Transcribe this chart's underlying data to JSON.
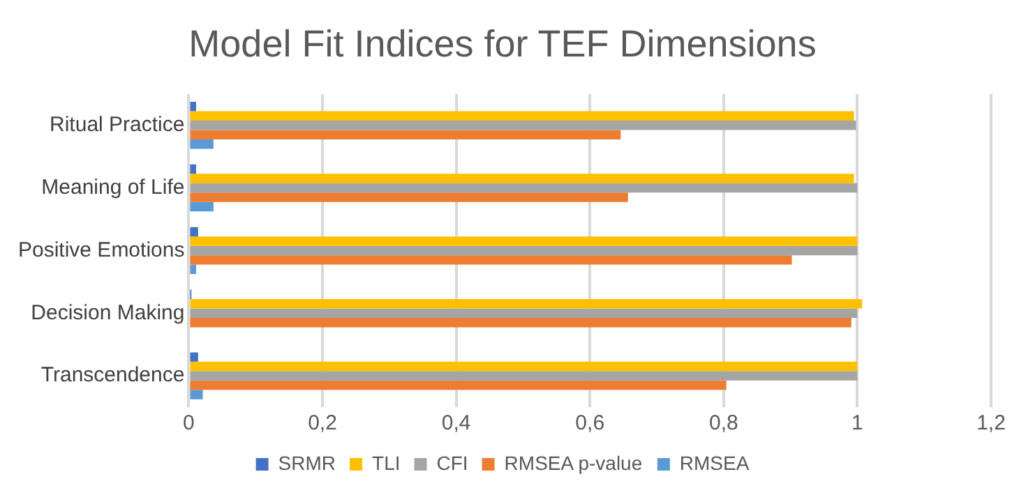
{
  "chart_data": {
    "type": "bar",
    "orientation": "horizontal",
    "title": "Model Fit Indices for TEF Dimensions",
    "categories": [
      "Ritual Practice",
      "Meaning of Life",
      "Positive Emotions",
      "Decision Making",
      "Transcendence"
    ],
    "series": [
      {
        "name": "SRMR",
        "color": "#4472c4",
        "values": [
          0.011,
          0.011,
          0.014,
          0.004,
          0.014
        ]
      },
      {
        "name": "TLI",
        "color": "#ffc000",
        "values": [
          0.995,
          0.995,
          1.0,
          1.007,
          1.0
        ]
      },
      {
        "name": "CFI",
        "color": "#a5a5a5",
        "values": [
          0.998,
          1.0,
          1.0,
          1.0,
          1.0
        ]
      },
      {
        "name": "RMSEA p-value",
        "color": "#ed7d31",
        "values": [
          0.646,
          0.657,
          0.902,
          0.991,
          0.804
        ]
      },
      {
        "name": "RMSEA",
        "color": "#5b9bd5",
        "values": [
          0.037,
          0.037,
          0.011,
          0.0,
          0.021
        ]
      }
    ],
    "xlim": [
      0,
      1.2
    ],
    "xticks": [
      0,
      {
        "value": 0.2,
        "label": "0,2"
      },
      {
        "value": 0.4,
        "label": "0,4"
      },
      {
        "value": 0.6,
        "label": "0,6"
      },
      {
        "value": 0.8,
        "label": "0,8"
      },
      1,
      {
        "value": 1.2,
        "label": "1,2"
      }
    ],
    "grid": "x",
    "legend": "bottom"
  }
}
